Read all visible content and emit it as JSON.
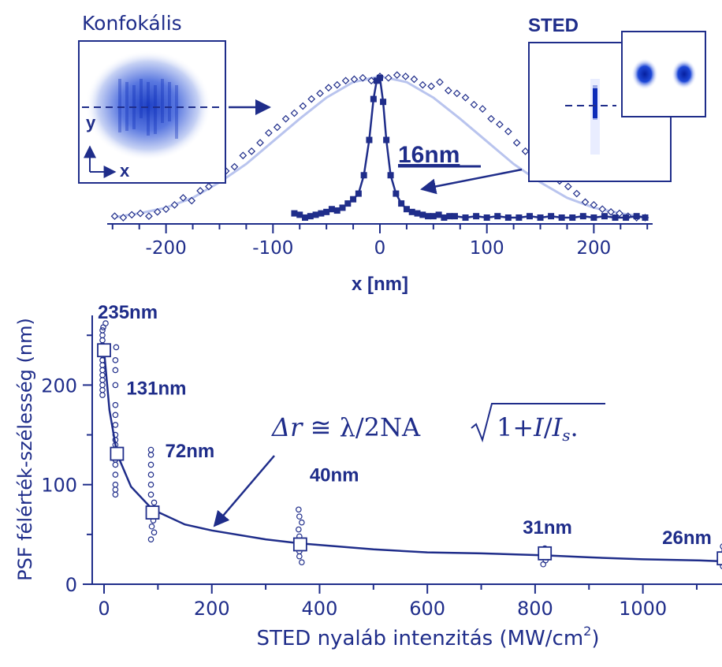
{
  "colors": {
    "primary": "#1f2d8a",
    "light_curve": "#b9c4ee",
    "psf_dark": "#0b2ab8",
    "psf_light": "#dfe6ff"
  },
  "insets": {
    "confocal_title": "Konfokális",
    "sted_title": "STED",
    "axis_y": "y",
    "axis_x": "x",
    "sted_width_label": "16nm"
  },
  "formula": {
    "delta_r": "Δr",
    "approx": "≅",
    "lambda": "λ/2NA",
    "one_plus": "1+",
    "I": "I",
    "slash": "/",
    "Is": "I",
    "s": "s",
    "period": "."
  },
  "chart_data": [
    {
      "type": "scatter",
      "title": "",
      "xlabel": "x [nm]",
      "ylabel": "",
      "xlim": [
        -255,
        255
      ],
      "ylim": [
        0,
        1.05
      ],
      "grid": false,
      "xticks": [
        -200,
        -100,
        0,
        100,
        200
      ],
      "xtick_labels": [
        "-200",
        "-100",
        "0",
        "100",
        "200"
      ],
      "series": [
        {
          "style": "open-diamond-markers",
          "x": [
            -248,
            -240,
            -232,
            -224,
            -216,
            -208,
            -200,
            -192,
            -184,
            -176,
            -168,
            -160,
            -152,
            -144,
            -136,
            -128,
            -120,
            -112,
            -104,
            -96,
            -88,
            -80,
            -72,
            -64,
            -56,
            -48,
            -40,
            -32,
            -24,
            -16,
            -8,
            0,
            8,
            16,
            24,
            32,
            40,
            48,
            56,
            64,
            72,
            80,
            88,
            96,
            104,
            112,
            120,
            128,
            136,
            144,
            152,
            160,
            168,
            176,
            184,
            192,
            200,
            208,
            216,
            224,
            232,
            240,
            248
          ],
          "y": [
            0.01,
            0.0,
            0.02,
            0.03,
            0.01,
            0.04,
            0.06,
            0.09,
            0.14,
            0.12,
            0.19,
            0.22,
            0.28,
            0.33,
            0.36,
            0.44,
            0.47,
            0.53,
            0.6,
            0.64,
            0.7,
            0.74,
            0.79,
            0.84,
            0.88,
            0.92,
            0.94,
            0.97,
            0.98,
            0.99,
            0.97,
            1.0,
            0.99,
            1.01,
            1.0,
            0.98,
            0.94,
            0.93,
            0.96,
            0.9,
            0.88,
            0.85,
            0.8,
            0.77,
            0.7,
            0.66,
            0.61,
            0.53,
            0.47,
            0.44,
            0.37,
            0.31,
            0.26,
            0.22,
            0.17,
            0.11,
            0.09,
            0.06,
            0.04,
            0.03,
            0.01,
            0.0,
            0.0
          ]
        },
        {
          "style": "gaussian-fit-line",
          "x": [
            -250,
            -225,
            -200,
            -175,
            -150,
            -125,
            -100,
            -75,
            -50,
            -25,
            0,
            25,
            50,
            75,
            100,
            125,
            150,
            175,
            200,
            225,
            250
          ],
          "y": [
            0.0,
            0.03,
            0.07,
            0.14,
            0.25,
            0.38,
            0.54,
            0.7,
            0.85,
            0.96,
            1.0,
            0.96,
            0.85,
            0.7,
            0.54,
            0.38,
            0.25,
            0.14,
            0.07,
            0.03,
            0.0
          ]
        },
        {
          "style": "filled-square-markers-with-line",
          "x": [
            -80,
            -75,
            -70,
            -65,
            -60,
            -55,
            -50,
            -45,
            -40,
            -35,
            -30,
            -25,
            -20,
            -15,
            -10,
            -6,
            -3,
            0,
            3,
            6,
            10,
            15,
            20,
            25,
            30,
            35,
            40,
            45,
            50,
            55,
            60,
            65,
            70,
            80,
            90,
            100,
            110,
            120,
            130,
            140,
            150,
            160,
            170,
            180,
            190,
            200,
            210,
            220,
            230,
            240,
            248
          ],
          "y": [
            0.03,
            0.02,
            0.0,
            0.01,
            0.02,
            0.03,
            0.04,
            0.06,
            0.05,
            0.07,
            0.1,
            0.13,
            0.17,
            0.3,
            0.55,
            0.84,
            0.97,
            0.99,
            0.82,
            0.55,
            0.3,
            0.17,
            0.1,
            0.06,
            0.04,
            0.03,
            0.02,
            0.01,
            0.01,
            0.02,
            0.0,
            0.01,
            0.01,
            0.0,
            0.01,
            0.0,
            0.01,
            0.0,
            0.0,
            0.01,
            0.0,
            0.01,
            0.0,
            0.0,
            0.01,
            0.0,
            0.01,
            0.0,
            0.0,
            0.01,
            0.0
          ]
        }
      ]
    },
    {
      "type": "scatter",
      "title": "",
      "xlabel_main": "STED nyaláb intenzitás (MW/cm",
      "xlabel_sup": "2",
      "xlabel_end": ")",
      "ylabel": "PSF félérték-szélesség (nm)",
      "xlim": [
        -5,
        1160
      ],
      "ylim": [
        0,
        270
      ],
      "grid": false,
      "xticks": [
        0,
        200,
        400,
        600,
        800,
        1000
      ],
      "xtick_labels": [
        "0",
        "200",
        "400",
        "600",
        "800",
        "1000"
      ],
      "yticks": [
        0,
        100,
        200
      ],
      "ytick_labels": [
        "0",
        "100",
        "200"
      ],
      "means": {
        "x": [
          0,
          24,
          90,
          364,
          818,
          1150
        ],
        "y": [
          235,
          131,
          72,
          40,
          31,
          26
        ],
        "labels": [
          "235nm",
          "131nm",
          "72nm",
          "40nm",
          "31nm",
          "26nm"
        ]
      },
      "points": [
        {
          "x": 0,
          "y": [
            190,
            200,
            210,
            220,
            230,
            240,
            250,
            258,
            195,
            205,
            215,
            225,
            245,
            255,
            262
          ]
        },
        {
          "x": 24,
          "y": [
            90,
            100,
            110,
            120,
            130,
            140,
            150,
            160,
            170,
            180,
            200,
            215,
            225,
            238,
            95,
            125,
            145
          ]
        },
        {
          "x": 90,
          "y": [
            45,
            52,
            58,
            64,
            70,
            76,
            82,
            90,
            100,
            110,
            120,
            130,
            135
          ]
        },
        {
          "x": 364,
          "y": [
            22,
            28,
            33,
            38,
            43,
            48,
            55,
            62,
            68,
            75
          ]
        },
        {
          "x": 818,
          "y": [
            20,
            24,
            28,
            32,
            36
          ]
        },
        {
          "x": 1150,
          "y": [
            18,
            22,
            26,
            30,
            34,
            38
          ]
        }
      ],
      "fit": {
        "x": [
          0,
          10,
          24,
          50,
          90,
          150,
          200,
          300,
          364,
          500,
          600,
          700,
          818,
          900,
          1000,
          1100,
          1150
        ],
        "y": [
          235,
          175,
          131,
          98,
          75,
          60,
          54,
          45,
          41,
          35,
          32,
          31,
          29,
          27,
          25,
          24,
          23
        ]
      }
    }
  ]
}
